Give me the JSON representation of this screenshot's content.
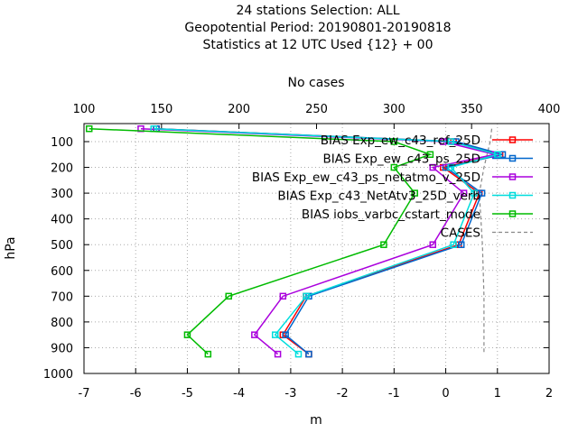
{
  "chart_data": {
    "type": "line",
    "title_lines": [
      "24 stations Selection: ALL",
      "Geopotential  Period: 20190801-20190818",
      "Statistics at 12 UTC  Used {12} + 00"
    ],
    "xlabel": "m",
    "ylabel": "hPa",
    "x2label": "No cases",
    "xlim": [
      -7,
      2
    ],
    "ylim": [
      1000,
      30
    ],
    "x2lim": [
      100,
      400
    ],
    "x_ticks": [
      -7,
      -6,
      -5,
      -4,
      -3,
      -2,
      -1,
      0,
      1,
      2
    ],
    "y_ticks": [
      100,
      200,
      300,
      400,
      500,
      600,
      700,
      800,
      900,
      1000
    ],
    "x2_ticks": [
      100,
      150,
      200,
      250,
      300,
      350,
      400
    ],
    "grid": true,
    "legend_position": "top-right",
    "series": [
      {
        "name": "BIAS Exp_ew_c43_ref_25D",
        "color": "#ff0000",
        "x": [
          -5.6,
          0.15,
          1.05,
          -0.05,
          0.65,
          0.25,
          -2.7,
          -3.15,
          -2.65
        ],
        "y": [
          50,
          100,
          150,
          200,
          300,
          500,
          700,
          850,
          925
        ]
      },
      {
        "name": "BIAS Exp_ew_c43_ps_25D",
        "color": "#0066cc",
        "x": [
          -5.6,
          0.2,
          1.1,
          0.0,
          0.7,
          0.3,
          -2.65,
          -3.1,
          -2.65
        ],
        "y": [
          50,
          100,
          150,
          200,
          300,
          500,
          700,
          850,
          925
        ]
      },
      {
        "name": "BIAS Exp_ew_c43_ps_netatmo_v_25D",
        "color": "#aa00dd",
        "x": [
          -5.9,
          -0.05,
          0.95,
          -0.25,
          0.35,
          -0.25,
          -3.15,
          -3.7,
          -3.25
        ],
        "y": [
          50,
          100,
          150,
          200,
          300,
          500,
          700,
          850,
          925
        ]
      },
      {
        "name": "BIAS Exp_c43_NetAtv3_25D_verb",
        "color": "#00dddd",
        "x": [
          -5.65,
          0.1,
          1.0,
          0.1,
          0.55,
          0.15,
          -2.7,
          -3.3,
          -2.85
        ],
        "y": [
          50,
          100,
          150,
          200,
          300,
          500,
          700,
          850,
          925
        ]
      },
      {
        "name": "BIAS iobs_varbc_cstart_mode",
        "color": "#00bb00",
        "x": [
          -6.9,
          -1.0,
          -0.3,
          -1.0,
          -0.6,
          -1.2,
          -4.2,
          -5.0,
          -4.6
        ],
        "y": [
          50,
          100,
          150,
          200,
          300,
          500,
          700,
          850,
          925
        ]
      }
    ],
    "cases": {
      "name": "CASES",
      "color": "#888888",
      "cases": [
        363,
        362,
        360,
        358,
        355,
        357,
        358,
        358,
        358
      ],
      "y": [
        50,
        100,
        150,
        200,
        300,
        500,
        700,
        850,
        925
      ]
    }
  }
}
